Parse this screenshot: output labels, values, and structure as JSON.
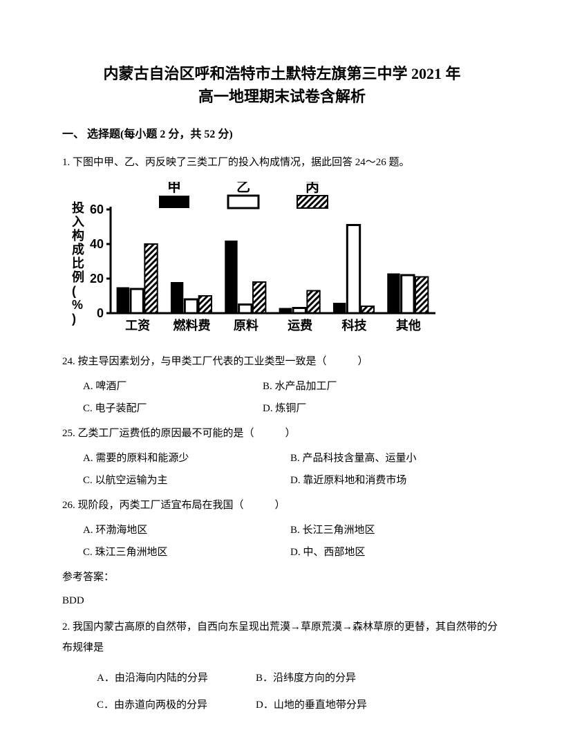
{
  "title": "内蒙古自治区呼和浩特市土默特左旗第三中学 2021 年\n高一地理期末试卷含解析",
  "section1": "一、 选择题(每小题 2 分，共 52 分)",
  "q1": {
    "stem": "1. 下图中甲、乙、丙反映了三类工厂的投入构成情况，据此回答 24～26 题。",
    "chart": {
      "type": "bar",
      "ylabel": "投入构成比例(%)",
      "ylim": [
        0,
        60
      ],
      "ytick_step": 20,
      "categories": [
        "工资",
        "燃料费",
        "原料",
        "运费",
        "科技",
        "其他"
      ],
      "series": [
        {
          "name": "甲",
          "fill": "solid",
          "color": "#000000",
          "values": [
            15,
            18,
            42,
            3,
            6,
            23
          ]
        },
        {
          "name": "乙",
          "fill": "hollow",
          "color": "#000000",
          "values": [
            14,
            8,
            5,
            3,
            51,
            22
          ]
        },
        {
          "name": "丙",
          "fill": "hatch",
          "color": "#000000",
          "values": [
            40,
            10,
            18,
            13,
            4,
            21
          ]
        }
      ],
      "background_color": "#ffffff",
      "axis_color": "#000000",
      "font_family": "SimHei",
      "label_fontsize": 18,
      "bar_group_width": 0.78
    },
    "sub24": {
      "text": "24. 按主导因素划分，与甲类工厂代表的工业类型一致是（　　　）",
      "A": "A. 啤酒厂",
      "B": "B. 水产品加工厂",
      "C": "C. 电子装配厂",
      "D": "D. 炼铜厂"
    },
    "sub25": {
      "text": "25. 乙类工厂运费低的原因最不可能的是（　　　）",
      "A": "A. 需要的原料和能源少",
      "B": "B. 产品科技含量高、运量小",
      "C": "C. 以航空运输为主",
      "D": "D. 靠近原料地和消费市场"
    },
    "sub26": {
      "text": "26. 现阶段，丙类工厂适宜布局在我国（　　　）",
      "A": "A. 环渤海地区",
      "B": "B. 长江三角洲地区",
      "C": "C. 珠江三角洲地区",
      "D": "D. 中、西部地区"
    },
    "answer_label": "参考答案：",
    "answer": "BDD"
  },
  "q2": {
    "stem": "2. 我国内蒙古高原的自然带，自西向东呈现出荒漠→草原荒漠→森林草原的更替，其自然带的分布规律是",
    "A": "A．由沿海向内陆的分异",
    "B": "B．沿纬度方向的分异",
    "C": "C．由赤道向两极的分异",
    "D": "D．山地的垂直地带分异"
  }
}
